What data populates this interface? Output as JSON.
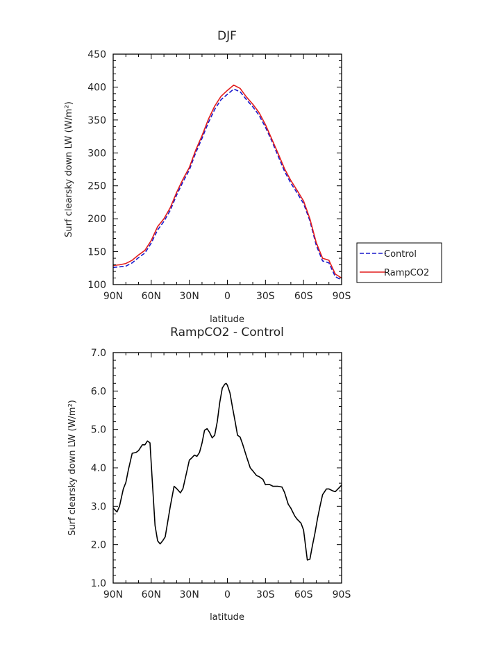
{
  "chart_data": [
    {
      "type": "line",
      "title": "DJF",
      "xlabel": "latitude",
      "ylabel": "Surf clearsky down LW (W/m²)",
      "xlim": [
        90,
        -90
      ],
      "ylim": [
        100,
        450
      ],
      "xticks": [
        90,
        60,
        30,
        0,
        -30,
        -60,
        -90
      ],
      "xtick_labels": [
        "90N",
        "60N",
        "30N",
        "0",
        "30S",
        "60S",
        "90S"
      ],
      "yticks": [
        100,
        150,
        200,
        250,
        300,
        350,
        400,
        450
      ],
      "ytick_labels": [
        "100",
        "150",
        "200",
        "250",
        "300",
        "350",
        "400",
        "450"
      ],
      "legend_position": "right",
      "x": [
        90,
        85,
        80,
        75,
        70,
        65,
        60,
        55,
        50,
        45,
        40,
        35,
        30,
        25,
        20,
        15,
        10,
        5,
        0,
        -5,
        -10,
        -15,
        -20,
        -25,
        -30,
        -35,
        -40,
        -45,
        -50,
        -55,
        -60,
        -65,
        -70,
        -75,
        -80,
        -85,
        -90
      ],
      "series": [
        {
          "name": "Control",
          "color": "#1a1acc",
          "dash": "dashed",
          "values": [
            126,
            127,
            128,
            133,
            141,
            148,
            163,
            183,
            196,
            213,
            236,
            256,
            274,
            300,
            322,
            346,
            366,
            381,
            389,
            397,
            393,
            381,
            370,
            357,
            339,
            318,
            295,
            272,
            254,
            239,
            223,
            197,
            160,
            136,
            133,
            112,
            107
          ]
        },
        {
          "name": "RampCO2",
          "color": "#e21c1c",
          "dash": "solid",
          "values": [
            129,
            130,
            132,
            137,
            145,
            152,
            167,
            188,
            200,
            217,
            240,
            260,
            278,
            304,
            326,
            351,
            371,
            386,
            395,
            403,
            398,
            385,
            374,
            361,
            343,
            321,
            299,
            276,
            258,
            243,
            227,
            200,
            164,
            140,
            137,
            116,
            110
          ]
        }
      ]
    },
    {
      "type": "line",
      "title": "RampCO2 - Control",
      "xlabel": "latitude",
      "ylabel": "Surf clearsky down LW (W/m²)",
      "xlim": [
        90,
        -90
      ],
      "ylim": [
        1.0,
        7.0
      ],
      "xticks": [
        90,
        60,
        30,
        0,
        -30,
        -60,
        -90
      ],
      "xtick_labels": [
        "90N",
        "60N",
        "30N",
        "0",
        "30S",
        "60S",
        "90S"
      ],
      "yticks": [
        1.0,
        2.0,
        3.0,
        4.0,
        5.0,
        6.0,
        7.0
      ],
      "ytick_labels": [
        "1.0",
        "2.0",
        "3.0",
        "4.0",
        "5.0",
        "6.0",
        "7.0"
      ],
      "series": [
        {
          "color": "#000000",
          "dash": "solid",
          "x": [
            90,
            87,
            85,
            82,
            80,
            78,
            75,
            72,
            70,
            67,
            65,
            63,
            61,
            59,
            57,
            55,
            53,
            51,
            49,
            47,
            45,
            42,
            40,
            37,
            35,
            32,
            30,
            28,
            26,
            24,
            22,
            20,
            18,
            16,
            14,
            12,
            10,
            8,
            6,
            4,
            2,
            1,
            0,
            -2,
            -4,
            -6,
            -8,
            -10,
            -12,
            -15,
            -18,
            -20,
            -23,
            -25,
            -28,
            -30,
            -33,
            -36,
            -38,
            -40,
            -43,
            -45,
            -48,
            -50,
            -53,
            -55,
            -58,
            -60,
            -63,
            -65,
            -67,
            -69,
            -71,
            -73,
            -75,
            -78,
            -80,
            -83,
            -85,
            -88,
            -90
          ],
          "values": [
            2.95,
            2.85,
            3.0,
            3.45,
            3.62,
            3.95,
            4.38,
            4.4,
            4.45,
            4.6,
            4.6,
            4.7,
            4.65,
            3.55,
            2.5,
            2.1,
            2.02,
            2.1,
            2.2,
            2.6,
            3.0,
            3.52,
            3.46,
            3.35,
            3.46,
            3.9,
            4.2,
            4.26,
            4.33,
            4.3,
            4.4,
            4.64,
            4.98,
            5.02,
            4.92,
            4.78,
            4.85,
            5.2,
            5.7,
            6.08,
            6.18,
            6.2,
            6.15,
            5.95,
            5.58,
            5.22,
            4.85,
            4.8,
            4.62,
            4.3,
            4.0,
            3.92,
            3.8,
            3.77,
            3.7,
            3.56,
            3.57,
            3.52,
            3.52,
            3.52,
            3.5,
            3.36,
            3.05,
            2.95,
            2.75,
            2.66,
            2.56,
            2.38,
            1.6,
            1.62,
            1.98,
            2.3,
            2.68,
            3.0,
            3.3,
            3.45,
            3.45,
            3.4,
            3.38,
            3.48,
            3.55
          ]
        }
      ]
    }
  ]
}
